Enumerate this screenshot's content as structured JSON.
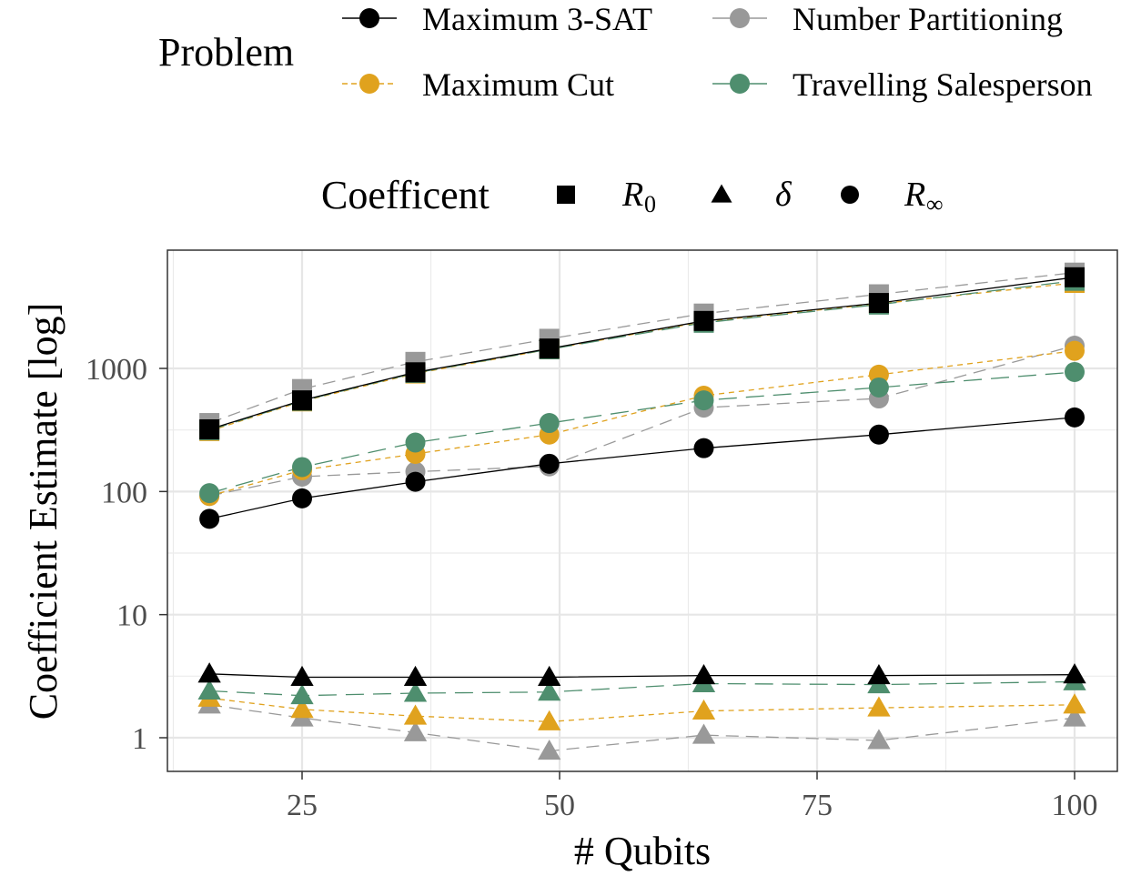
{
  "chart_data": {
    "type": "line",
    "title": "",
    "xlabel": "# Qubits",
    "ylabel": "Coefficient Estimate [log]",
    "yscale": "log",
    "xlim": [
      12,
      104
    ],
    "ylim": [
      0.56,
      9000
    ],
    "grid": true,
    "x_ticks": [
      25,
      50,
      75,
      100
    ],
    "x_tick_labels": [
      "25",
      "50",
      "75",
      "100"
    ],
    "y_ticks": [
      1,
      10,
      100,
      1000
    ],
    "y_tick_labels": [
      "1",
      "10",
      "100",
      "1000"
    ],
    "x": [
      16,
      25,
      36,
      49,
      64,
      81,
      100
    ],
    "legend_problem": {
      "title": "Problem",
      "placement": "top",
      "entries": [
        {
          "name": "Maximum 3-SAT",
          "color": "#000000",
          "dash": "solid"
        },
        {
          "name": "Number Partitioning",
          "color": "#999999",
          "dash": "longdash"
        },
        {
          "name": "Maximum Cut",
          "color": "#E0A21E",
          "dash": "dashed"
        },
        {
          "name": "Travelling Salesperson",
          "color": "#4E8E6E",
          "dash": "twodash"
        }
      ]
    },
    "legend_coefficient": {
      "title": "Coefficent",
      "placement": "top",
      "entries": [
        {
          "name": "R0",
          "symbol": "R",
          "subscript": "0",
          "shape": "square"
        },
        {
          "name": "delta",
          "symbol": "δ",
          "subscript": "",
          "shape": "triangle"
        },
        {
          "name": "R_inf",
          "symbol": "R",
          "subscript": "∞",
          "shape": "circle"
        }
      ]
    },
    "series": [
      {
        "problem": "Maximum 3-SAT",
        "coefficient": "R0",
        "values": [
          320,
          550,
          930,
          1450,
          2430,
          3400,
          5500
        ]
      },
      {
        "problem": "Maximum 3-SAT",
        "coefficient": "delta",
        "values": [
          3.3,
          3.1,
          3.1,
          3.1,
          3.2,
          3.2,
          3.25
        ]
      },
      {
        "problem": "Maximum 3-SAT",
        "coefficient": "R_inf",
        "values": [
          60,
          88,
          120,
          168,
          225,
          290,
          400
        ]
      },
      {
        "problem": "Number Partitioning",
        "coefficient": "R0",
        "values": [
          360,
          680,
          1130,
          1740,
          2790,
          4000,
          6000
        ]
      },
      {
        "problem": "Number Partitioning",
        "coefficient": "delta",
        "values": [
          1.85,
          1.45,
          1.1,
          0.78,
          1.05,
          0.95,
          1.45
        ]
      },
      {
        "problem": "Number Partitioning",
        "coefficient": "R_inf",
        "values": [
          92,
          132,
          145,
          160,
          480,
          570,
          1530
        ]
      },
      {
        "problem": "Maximum Cut",
        "coefficient": "R0",
        "values": [
          310,
          540,
          910,
          1430,
          2400,
          3350,
          4950
        ]
      },
      {
        "problem": "Maximum Cut",
        "coefficient": "delta",
        "values": [
          2.1,
          1.7,
          1.5,
          1.35,
          1.65,
          1.75,
          1.85
        ]
      },
      {
        "problem": "Maximum Cut",
        "coefficient": "R_inf",
        "values": [
          92,
          149,
          202,
          290,
          600,
          890,
          1390
        ]
      },
      {
        "problem": "Travelling Salesperson",
        "coefficient": "R0",
        "values": [
          315,
          545,
          920,
          1430,
          2350,
          3300,
          5150
        ]
      },
      {
        "problem": "Travelling Salesperson",
        "coefficient": "delta",
        "values": [
          2.4,
          2.2,
          2.3,
          2.35,
          2.75,
          2.7,
          2.85
        ]
      },
      {
        "problem": "Travelling Salesperson",
        "coefficient": "R_inf",
        "values": [
          97,
          158,
          250,
          360,
          550,
          700,
          935
        ]
      }
    ]
  }
}
